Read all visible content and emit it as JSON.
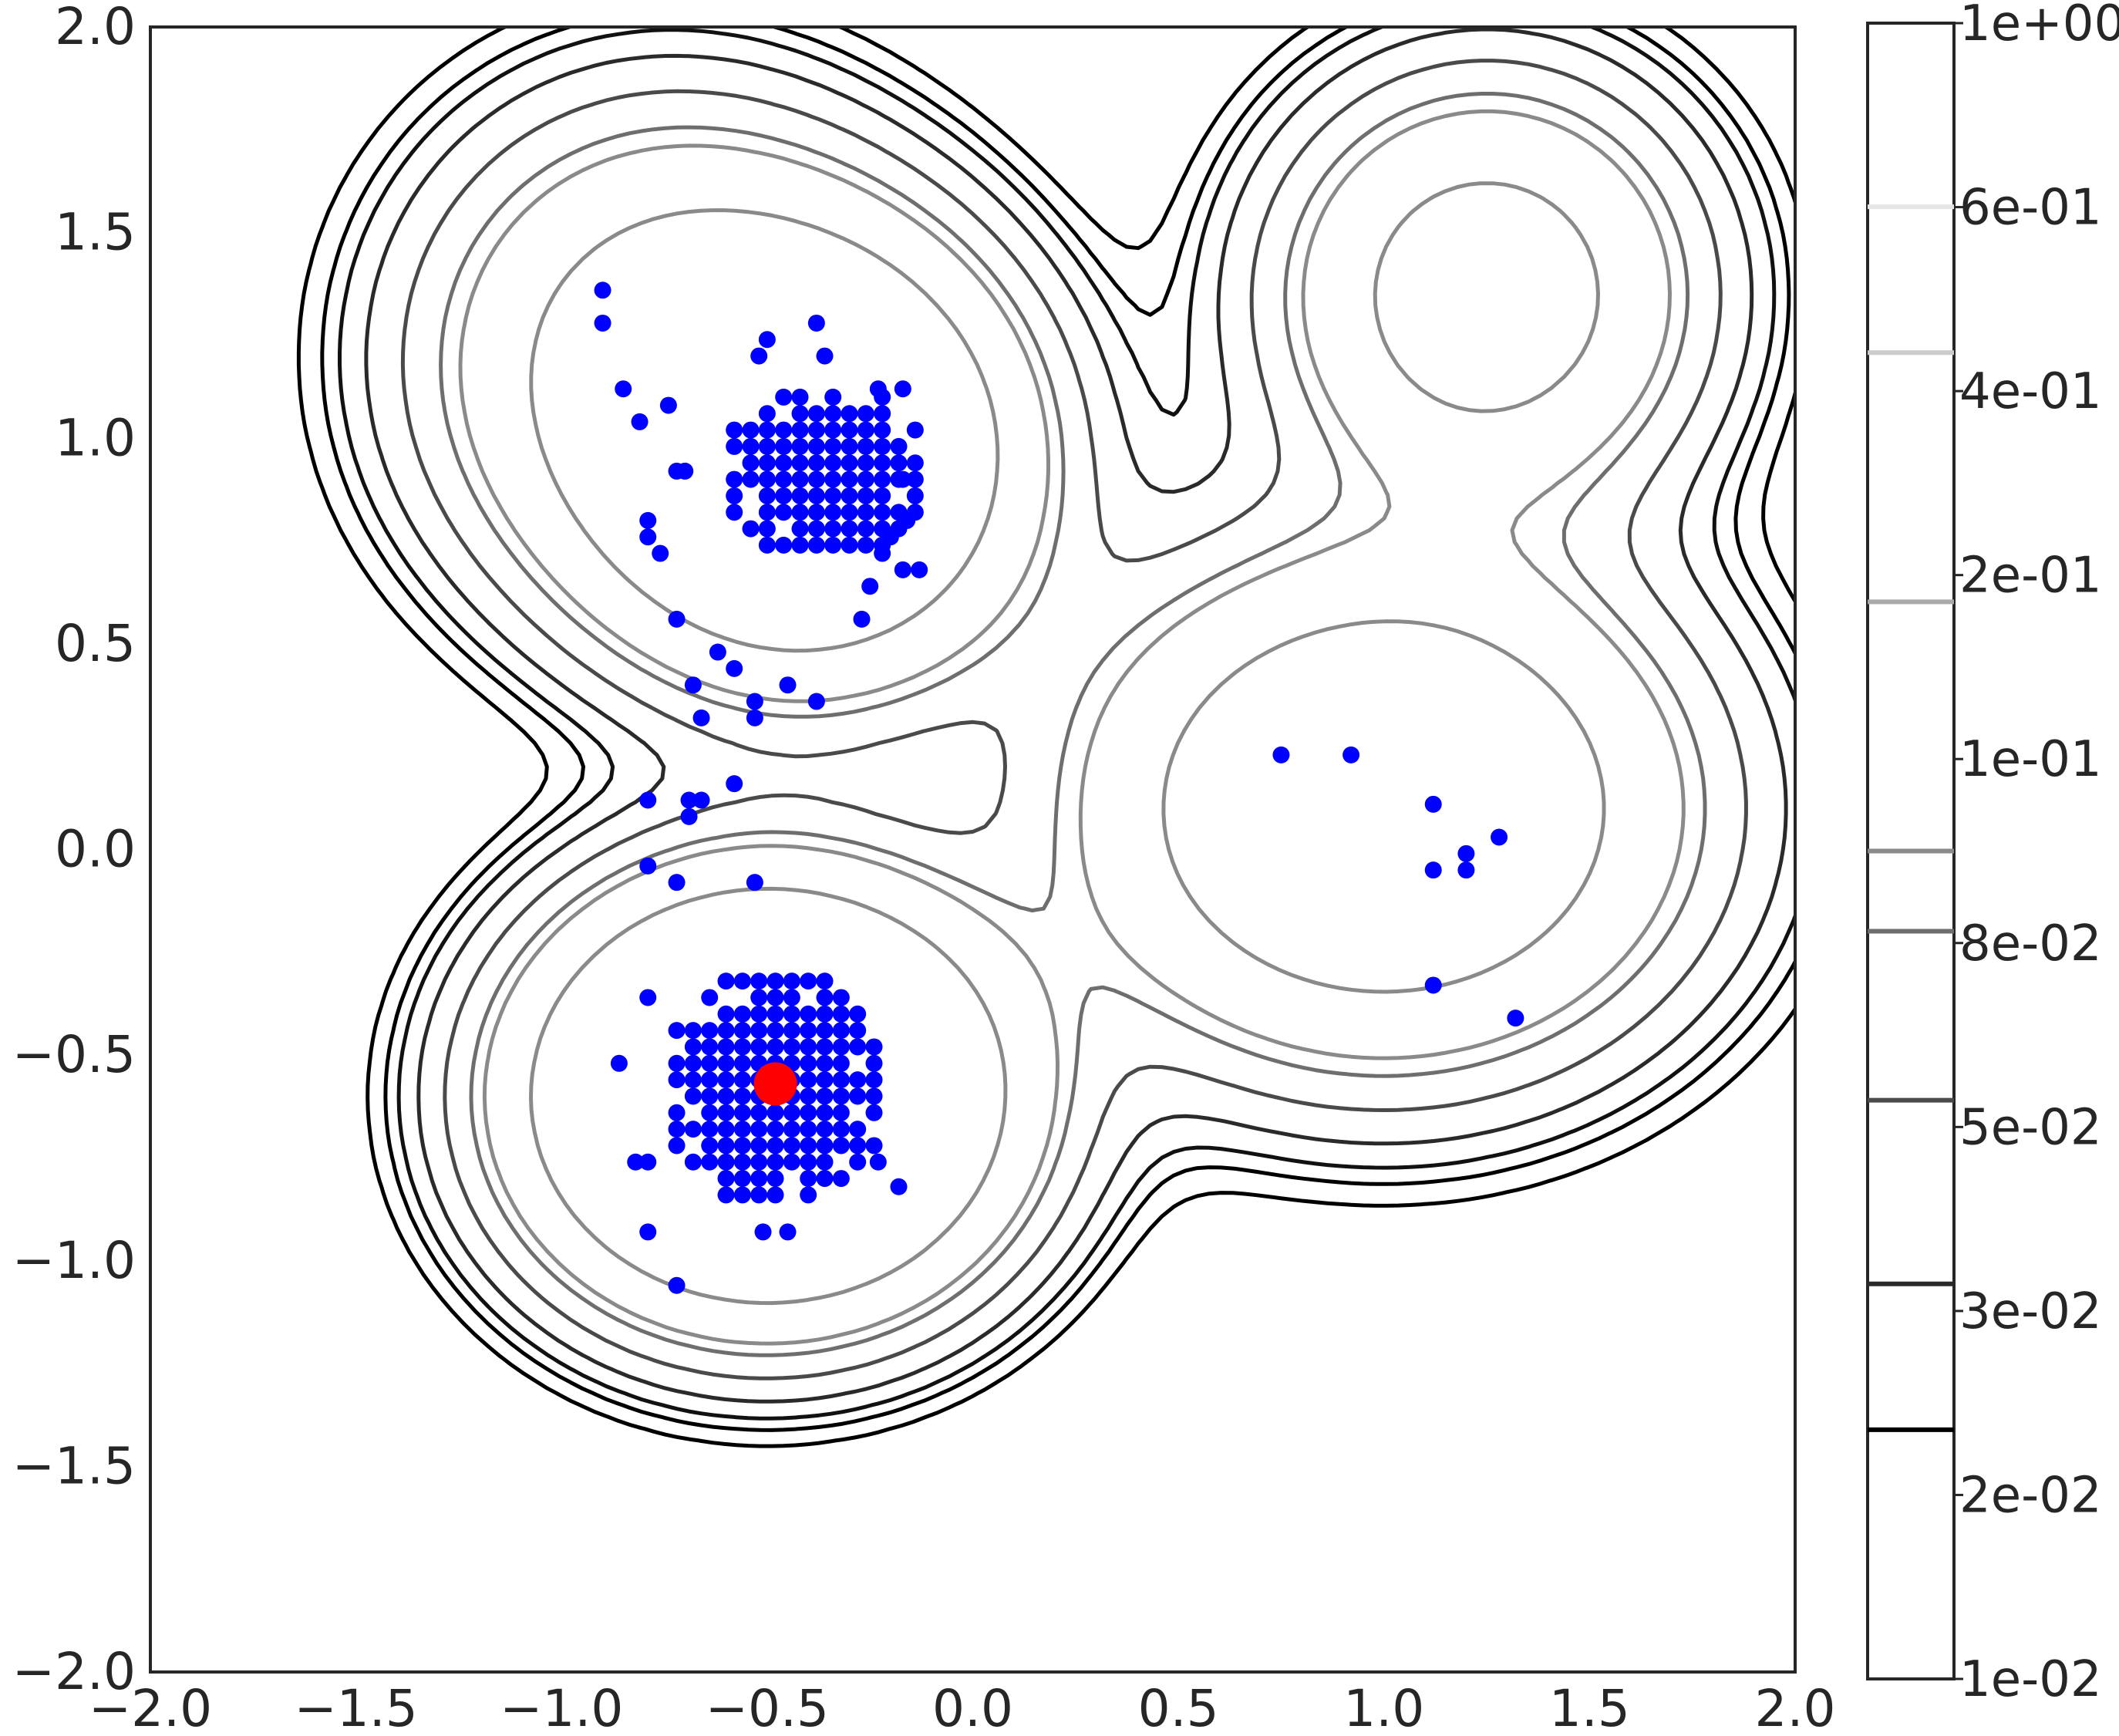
{
  "chart_data": {
    "type": "scatter",
    "title": "",
    "xlabel": "",
    "ylabel": "",
    "xlim": [
      -2.0,
      2.0
    ],
    "ylim": [
      -2.0,
      2.0
    ],
    "grid": false,
    "x_ticks": [
      "−2.0",
      "−1.5",
      "−1.0",
      "−0.5",
      "0.0",
      "0.5",
      "1.0",
      "1.5",
      "2.0"
    ],
    "y_ticks": [
      "2.0",
      "1.5",
      "1.0",
      "0.5",
      "0.0",
      "−0.5",
      "−1.0",
      "−1.5",
      "−2.0"
    ],
    "colorbar": {
      "labels": [
        "1e+00",
        "6e-01",
        "4e-01",
        "2e-01",
        "1e-01",
        "8e-02",
        "5e-02",
        "3e-02",
        "2e-02",
        "1e-02"
      ],
      "scale": "log",
      "range": [
        0.01,
        1.0
      ],
      "line_levels": [
        0.6,
        0.4,
        0.2,
        0.1,
        0.08,
        0.05,
        0.03,
        0.02
      ],
      "line_colors": [
        "#e6e6e6",
        "#cccccc",
        "#aaaaaa",
        "#8a8a8a",
        "#6e6e6e",
        "#4a4a4a",
        "#2a2a2a",
        "#000000"
      ]
    },
    "density_modes": [
      {
        "x": -0.5,
        "y": -0.6,
        "sx": 0.32,
        "sy": 0.28,
        "w": 1.0
      },
      {
        "x": -0.4,
        "y": 0.95,
        "sx": 0.3,
        "sy": 0.3,
        "w": 0.6
      },
      {
        "x": 1.0,
        "y": 0.1,
        "sx": 0.42,
        "sy": 0.35,
        "w": 0.45
      },
      {
        "x": 1.25,
        "y": 1.35,
        "sx": 0.3,
        "sy": 0.3,
        "w": 0.3
      },
      {
        "x": -0.75,
        "y": 1.2,
        "sx": 0.35,
        "sy": 0.35,
        "w": 0.25
      }
    ],
    "series": [
      {
        "color": "#0000ff",
        "clusters": [
          {
            "cx": -0.48,
            "cy": -0.58,
            "rx": 0.28,
            "ry": 0.3,
            "step": 0.04
          },
          {
            "cx": -0.36,
            "cy": 0.92,
            "rx": 0.26,
            "ry": 0.22,
            "step": 0.04
          }
        ],
        "points": [
          [
            -0.9,
            1.36
          ],
          [
            -0.9,
            1.28
          ],
          [
            -0.85,
            1.12
          ],
          [
            -0.81,
            1.04
          ],
          [
            -0.74,
            1.08
          ],
          [
            -0.72,
            0.92
          ],
          [
            -0.7,
            0.92
          ],
          [
            -0.79,
            0.8
          ],
          [
            -0.79,
            0.76
          ],
          [
            -0.76,
            0.72
          ],
          [
            -0.72,
            0.56
          ],
          [
            -0.68,
            0.4
          ],
          [
            -0.62,
            0.48
          ],
          [
            -0.58,
            0.44
          ],
          [
            -0.53,
            0.36
          ],
          [
            -0.66,
            0.32
          ],
          [
            -0.53,
            0.32
          ],
          [
            -0.45,
            0.4
          ],
          [
            -0.38,
            0.36
          ],
          [
            -0.58,
            0.16
          ],
          [
            -0.79,
            0.12
          ],
          [
            -0.69,
            0.12
          ],
          [
            -0.69,
            0.08
          ],
          [
            -0.66,
            0.12
          ],
          [
            -0.79,
            -0.04
          ],
          [
            -0.72,
            -0.08
          ],
          [
            -0.53,
            -0.08
          ],
          [
            -0.86,
            -0.52
          ],
          [
            -0.79,
            -0.36
          ],
          [
            -0.82,
            -0.76
          ],
          [
            -0.79,
            -0.76
          ],
          [
            -0.79,
            -0.93
          ],
          [
            -0.72,
            -1.06
          ],
          [
            -0.18,
            -0.82
          ],
          [
            -0.51,
            -0.93
          ],
          [
            -0.45,
            -0.93
          ],
          [
            -0.22,
            0.72
          ],
          [
            -0.2,
            0.76
          ],
          [
            -0.17,
            0.9
          ],
          [
            -0.17,
            0.68
          ],
          [
            -0.23,
            1.12
          ],
          [
            -0.17,
            1.12
          ],
          [
            -0.27,
            0.56
          ],
          [
            -0.25,
            0.64
          ],
          [
            -0.23,
            -0.76
          ],
          [
            -0.13,
            0.68
          ],
          [
            -0.16,
            0.8
          ],
          [
            -0.52,
            1.2
          ],
          [
            -0.5,
            1.24
          ],
          [
            -0.38,
            1.28
          ],
          [
            -0.36,
            1.2
          ],
          [
            0.75,
            0.23
          ],
          [
            0.92,
            0.23
          ],
          [
            1.12,
            0.11
          ],
          [
            1.2,
            -0.01
          ],
          [
            1.2,
            -0.05
          ],
          [
            1.28,
            0.03
          ],
          [
            1.12,
            -0.05
          ],
          [
            1.12,
            -0.33
          ],
          [
            1.32,
            -0.41
          ]
        ]
      },
      {
        "color": "#ff0000",
        "points": [
          [
            -0.48,
            -0.57
          ]
        ]
      }
    ]
  }
}
